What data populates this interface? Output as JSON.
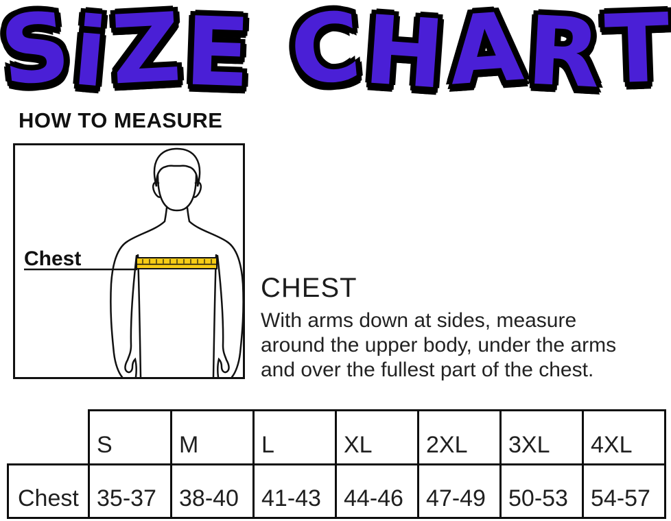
{
  "title": {
    "text": "SiZE CHART",
    "color": "#4a1fd6",
    "outline_color": "#000000"
  },
  "how_to_measure": {
    "heading": "HOW TO MEASURE"
  },
  "diagram": {
    "chest_label": "Chest",
    "tape_color": "#f7cc16"
  },
  "measurement_info": {
    "heading": "CHEST",
    "line1": "With arms down at sides, measure",
    "line2": "around the upper body, under the arms",
    "line3": "and over the fullest part of the chest."
  },
  "size_table": {
    "columns": [
      "S",
      "M",
      "L",
      "XL",
      "2XL",
      "3XL",
      "4XL"
    ],
    "rows": [
      {
        "label": "Chest",
        "values": [
          "35-37",
          "38-40",
          "41-43",
          "44-46",
          "47-49",
          "50-53",
          "54-57"
        ]
      }
    ]
  }
}
